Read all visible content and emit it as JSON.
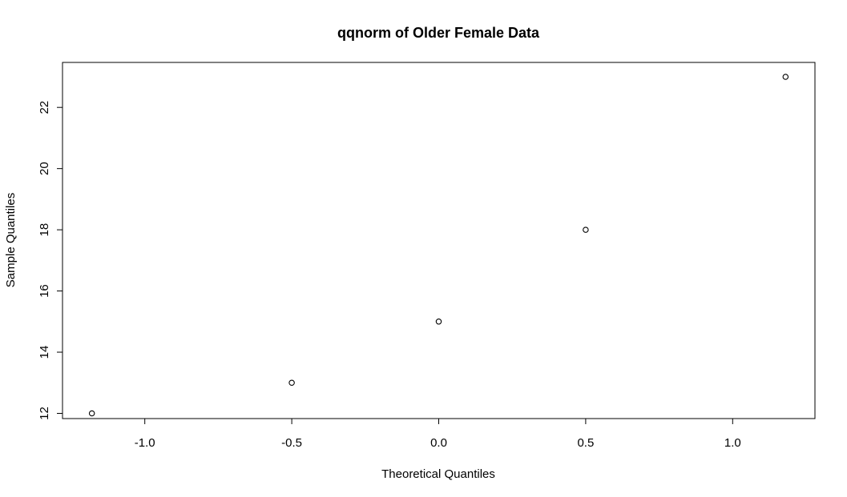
{
  "chart_data": {
    "type": "scatter",
    "title": "qqnorm of Older Female Data",
    "xlabel": "Theoretical Quantiles",
    "ylabel": "Sample Quantiles",
    "xlim": [
      -1.28,
      1.28
    ],
    "ylim": [
      11.83,
      23.47
    ],
    "x_ticks": [
      -1.0,
      -0.5,
      0.0,
      0.5,
      1.0
    ],
    "x_tick_labels": [
      "-1.0",
      "-0.5",
      "0.0",
      "0.5",
      "1.0"
    ],
    "y_ticks": [
      12,
      14,
      16,
      18,
      20,
      22
    ],
    "y_tick_labels": [
      "12",
      "14",
      "16",
      "18",
      "20",
      "22"
    ],
    "grid": false,
    "series": [
      {
        "x": [
          -1.18,
          -0.5,
          0.0,
          0.5,
          1.18
        ],
        "y": [
          12,
          13,
          15,
          18,
          23
        ]
      }
    ]
  }
}
